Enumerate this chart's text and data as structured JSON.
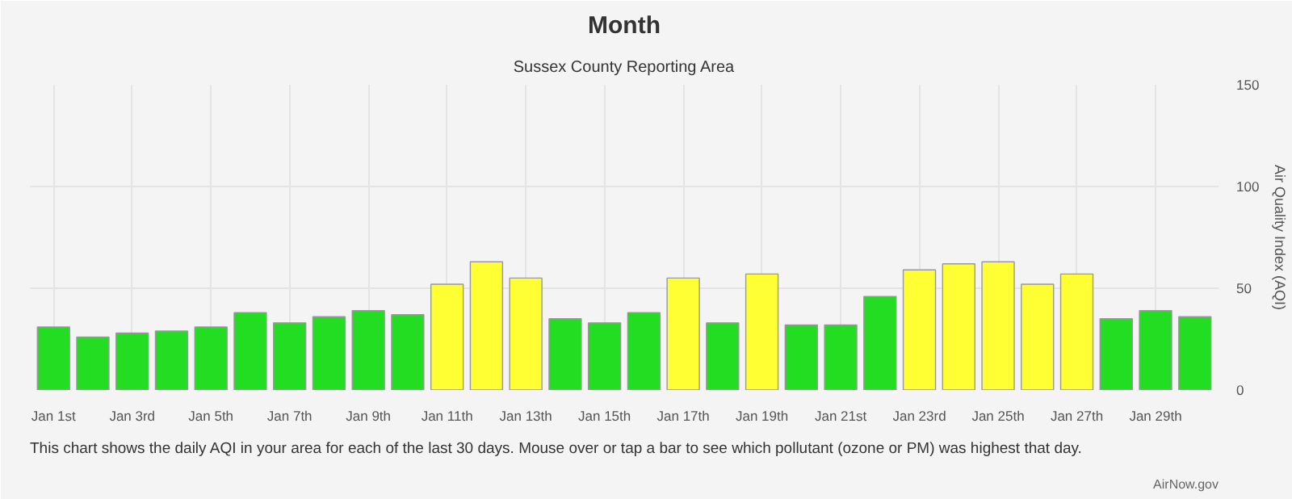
{
  "chart_data": {
    "type": "bar",
    "title": "Month",
    "subtitle": "Sussex County Reporting Area",
    "ylabel": "Air Quality Index (AQI)",
    "categories": [
      "Jan 1st",
      null,
      "Jan 3rd",
      null,
      "Jan 5th",
      null,
      "Jan 7th",
      null,
      "Jan 9th",
      null,
      "Jan 11th",
      null,
      "Jan 13th",
      null,
      "Jan 15th",
      null,
      "Jan 17th",
      null,
      "Jan 19th",
      null,
      "Jan 21st",
      null,
      "Jan 23rd",
      null,
      "Jan 25th",
      null,
      "Jan 27th",
      null,
      "Jan 29th",
      null
    ],
    "values": [
      31,
      26,
      28,
      29,
      31,
      38,
      33,
      36,
      39,
      37,
      52,
      63,
      55,
      35,
      33,
      38,
      55,
      33,
      57,
      32,
      32,
      46,
      59,
      62,
      63,
      52,
      57,
      35,
      39,
      36
    ],
    "colors": [
      "#22dd22",
      "#22dd22",
      "#22dd22",
      "#22dd22",
      "#22dd22",
      "#22dd22",
      "#22dd22",
      "#22dd22",
      "#22dd22",
      "#22dd22",
      "#ffff33",
      "#ffff33",
      "#ffff33",
      "#22dd22",
      "#22dd22",
      "#22dd22",
      "#ffff33",
      "#22dd22",
      "#ffff33",
      "#22dd22",
      "#22dd22",
      "#22dd22",
      "#ffff33",
      "#ffff33",
      "#ffff33",
      "#ffff33",
      "#ffff33",
      "#22dd22",
      "#22dd22",
      "#22dd22"
    ],
    "ylim": [
      0,
      150
    ],
    "yticks": [
      0,
      50,
      100,
      150
    ],
    "grid": true,
    "annotations": [
      "This chart shows the daily AQI in your area for each of the last 30 days. Mouse over or tap a bar to see which pollutant (ozone or PM) was highest that day.",
      "AirNow.gov"
    ]
  }
}
